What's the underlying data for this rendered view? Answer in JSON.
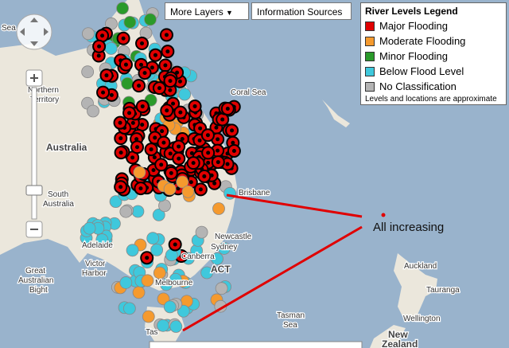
{
  "controls": {
    "more_layers": "More Layers",
    "information_sources": "Information Sources"
  },
  "legend": {
    "title": "River Levels Legend",
    "items": [
      {
        "label": "Major Flooding",
        "color": "#e00000"
      },
      {
        "label": "Moderate Flooding",
        "color": "#f59a2e"
      },
      {
        "label": "Minor Flooding",
        "color": "#2a9a2a"
      },
      {
        "label": "Below Flood Level",
        "color": "#3fc8dc"
      },
      {
        "label": "No Classification",
        "color": "#b4b4b4"
      }
    ],
    "note": "Levels and locations are approximate"
  },
  "map_labels": {
    "sea_top": "Sea",
    "northern": "Northern",
    "territory": "Territory",
    "australia": "Australia",
    "coral_sea": "Coral Sea",
    "south": "South",
    "south_australia": "Australia",
    "great": "Great",
    "australian": "Australian",
    "bight": "Bight",
    "brisbane": "Brisbane",
    "newcastle": "Newcastle",
    "sydney": "Sydney",
    "canberra": "Canberra",
    "act": "ACT",
    "adelaide": "Adelaide",
    "victor": "Victor",
    "harbor": "Harbor",
    "melbourne": "Melbourne",
    "tasman": "Tasman",
    "tasman_sea": "Sea",
    "tas": "Tas",
    "auckland": "Auckland",
    "tauranga": "Tauranga",
    "wellington": "Wellington",
    "new": "New",
    "zealand": "Zealand"
  },
  "annotation": "All increasing"
}
